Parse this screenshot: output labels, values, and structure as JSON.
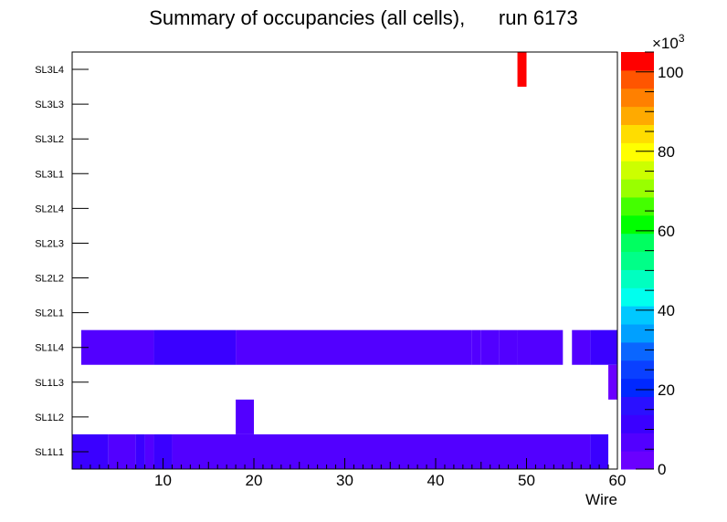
{
  "chart_data": {
    "type": "heatmap",
    "title": "Summary of occupancies (all cells),      run 6173",
    "xlabel": "Wire",
    "ylabel": "",
    "x_range": [
      0,
      60
    ],
    "x_ticks": [
      10,
      20,
      30,
      40,
      50,
      60
    ],
    "y_categories": [
      "SL1L1",
      "SL1L2",
      "SL1L3",
      "SL1L4",
      "SL2L1",
      "SL2L2",
      "SL2L3",
      "SL2L4",
      "SL3L1",
      "SL3L2",
      "SL3L3",
      "SL3L4"
    ],
    "z_range": [
      0,
      105000
    ],
    "z_ticks": [
      0,
      20,
      40,
      60,
      80,
      100
    ],
    "z_multiplier": "×10",
    "z_exponent": "3",
    "palette": [
      "#6a00ff",
      "#5200ff",
      "#3a00ff",
      "#2a10ff",
      "#0028ff",
      "#0a40ff",
      "#0a66ff",
      "#00a0ff",
      "#00c8ff",
      "#00ffee",
      "#00ffc0",
      "#00ff88",
      "#00ff60",
      "#00ff00",
      "#44ff00",
      "#99ff00",
      "#ccff00",
      "#ffff00",
      "#ffdd00",
      "#ffaa00",
      "#ff8000",
      "#ff5500",
      "#ff0000"
    ],
    "cells": [
      {
        "layer": "SL1L1",
        "x0": 0,
        "x1": 4,
        "value": 12000
      },
      {
        "layer": "SL1L1",
        "x0": 4,
        "x1": 7,
        "value": 8000
      },
      {
        "layer": "SL1L1",
        "x0": 7,
        "x1": 8,
        "value": 11000
      },
      {
        "layer": "SL1L1",
        "x0": 8,
        "x1": 9,
        "value": 8000
      },
      {
        "layer": "SL1L1",
        "x0": 9,
        "x1": 11,
        "value": 11000
      },
      {
        "layer": "SL1L1",
        "x0": 11,
        "x1": 57,
        "value": 8000
      },
      {
        "layer": "SL1L1",
        "x0": 57,
        "x1": 59,
        "value": 12000
      },
      {
        "layer": "SL1L2",
        "x0": 18,
        "x1": 20,
        "value": 5000
      },
      {
        "layer": "SL1L3",
        "x0": 59,
        "x1": 60,
        "value": 3000
      },
      {
        "layer": "SL1L4",
        "x0": 1,
        "x1": 9,
        "value": 8000
      },
      {
        "layer": "SL1L4",
        "x0": 9,
        "x1": 18,
        "value": 12000
      },
      {
        "layer": "SL1L4",
        "x0": 18,
        "x1": 44,
        "value": 8000
      },
      {
        "layer": "SL1L4",
        "x0": 44,
        "x1": 45,
        "value": 5000
      },
      {
        "layer": "SL1L4",
        "x0": 45,
        "x1": 47,
        "value": 8000
      },
      {
        "layer": "SL1L4",
        "x0": 47,
        "x1": 49,
        "value": 5000
      },
      {
        "layer": "SL1L4",
        "x0": 49,
        "x1": 54,
        "value": 8000
      },
      {
        "layer": "SL1L4",
        "x0": 55,
        "x1": 57,
        "value": 8000
      },
      {
        "layer": "SL1L4",
        "x0": 57,
        "x1": 60,
        "value": 12000
      },
      {
        "layer": "SL3L4",
        "x0": 49,
        "x1": 50,
        "value": 104000
      }
    ]
  }
}
